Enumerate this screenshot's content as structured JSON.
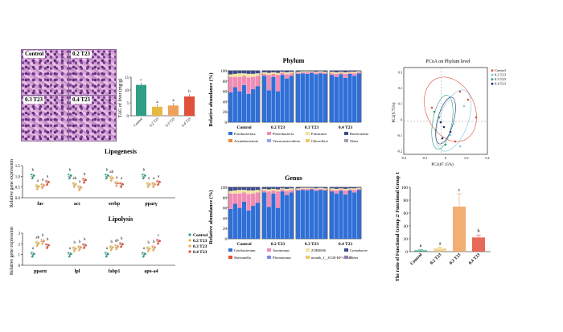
{
  "histology": {
    "labels": [
      "Control",
      "0.2 T23",
      "0.3 T23",
      "0.4 T23"
    ]
  },
  "colors": {
    "control": "#2e9e84",
    "t02": "#e6b845",
    "t03": "#f0a15a",
    "t04": "#e0503a"
  },
  "chart_data": [
    {
      "id": "tag",
      "type": "bar",
      "ylabel": "TAG of liver (mg/g)",
      "categories": [
        "Control",
        "0.2 T23",
        "0.3 T23",
        "0.4 T23"
      ],
      "values": [
        12,
        3.5,
        4,
        7.5
      ],
      "ylim": [
        0,
        15
      ],
      "yticks": [
        "0",
        "5",
        "10",
        "15"
      ],
      "letters": [
        "c",
        "a",
        "a",
        "b"
      ]
    },
    {
      "id": "lipogenesis",
      "type": "scatter",
      "title": "Lipogenesis",
      "ylabel": "Relative gene expression",
      "genes": [
        "fas",
        "acc",
        "srebp",
        "pparγ"
      ],
      "groups": [
        "Control",
        "0.2 T23",
        "0.3 T23",
        "0.4 T23"
      ],
      "means": [
        [
          1.0,
          0.5,
          0.55,
          0.7
        ],
        [
          1.0,
          0.6,
          0.45,
          0.8
        ],
        [
          1.0,
          0.9,
          0.65,
          0.6
        ],
        [
          1.0,
          0.6,
          0.6,
          0.7
        ]
      ],
      "letters": [
        [
          "b",
          "a",
          "a",
          "a"
        ],
        [
          "b",
          "ab",
          "a",
          "b"
        ],
        [
          "b",
          "ab",
          "a",
          "a"
        ],
        [
          "b",
          "a",
          "a",
          "a"
        ]
      ],
      "ylim": [
        0,
        1.5
      ],
      "yticks": [
        "0.0",
        "0.5",
        "1.0",
        "1.5"
      ]
    },
    {
      "id": "lipolysis",
      "type": "scatter",
      "title": "Lipolysis",
      "ylabel": "Relative gene expression",
      "genes": [
        "pparα",
        "lpl",
        "fabp1",
        "apo-a4"
      ],
      "groups": [
        "Control",
        "0.2 T23",
        "0.3 T23",
        "0.4 T23"
      ],
      "means": [
        [
          1.0,
          2.0,
          2.2,
          1.8
        ],
        [
          1.0,
          1.5,
          1.6,
          1.8
        ],
        [
          1.0,
          1.6,
          1.7,
          1.9
        ],
        [
          1.0,
          1.5,
          1.6,
          2.2
        ]
      ],
      "letters": [
        [
          "a",
          "ab",
          "b",
          "b"
        ],
        [
          "a",
          "b",
          "b",
          "b"
        ],
        [
          "a",
          "b",
          "ab",
          "b"
        ],
        [
          "a",
          "b",
          "b",
          "c"
        ]
      ],
      "ylim": [
        0,
        3
      ],
      "yticks": [
        "0",
        "1",
        "2",
        "3"
      ],
      "legend": [
        "Control",
        "0.2 T23",
        "0.3 T23",
        "0.4 T23"
      ]
    },
    {
      "id": "phylum",
      "type": "bar",
      "title": "Phylum",
      "ylabel": "Relative abundance (%)",
      "groups": [
        "Control",
        "0.2 T23",
        "0.3 T23",
        "0.4 T23"
      ],
      "yticks": [
        "0",
        "20",
        "40",
        "60",
        "80",
        "100"
      ],
      "legend": [
        "Fusobacteriota",
        "Proteobacteria",
        "Firmicutes",
        "Bacteroidota",
        "Actinobacteriota",
        "Verrucomicrobiota",
        "Chloroflexi",
        "Other"
      ],
      "legend_colors": [
        "#2f6fd6",
        "#f28cb4",
        "#f4e3a0",
        "#3a4a8a",
        "#e88a3c",
        "#8fa8e8",
        "#f2c66a",
        "#9aa4b2"
      ]
    },
    {
      "id": "genus",
      "type": "bar",
      "title": "Genus",
      "ylabel": "Relative abundance (%)",
      "groups": [
        "Control",
        "0.2 T23",
        "0.3 T23",
        "0.4 T23"
      ],
      "yticks": [
        "0",
        "20",
        "40",
        "60",
        "80",
        "100"
      ],
      "legend": [
        "Cetobacterium",
        "Aeromonas",
        "ZOR0006",
        "Crenobacter",
        "Shewanella",
        "Plesiomonas",
        "norank_f__JG30-KF-CM45",
        "Other"
      ],
      "legend_colors": [
        "#2f6fd6",
        "#f28cb4",
        "#f4e3a0",
        "#3a4a8a",
        "#e0503a",
        "#7a8ee8",
        "#f2c66a",
        "#9a7ab2"
      ]
    },
    {
      "id": "pcoa",
      "type": "scatter",
      "title": "PCoA on Phylum level",
      "xlabel": "PC1(87.15%)",
      "ylabel": "PC2(9.75%)",
      "xticks": [
        "-0.4",
        "-0.2",
        "0",
        "0.2",
        "0.4"
      ],
      "yticks": [
        "0.3",
        "0.2",
        "0.1",
        "0",
        "-0.1",
        "-0.2"
      ],
      "legend": [
        "Control",
        "0.2 T23",
        "0.3 T23",
        "0.4 T23"
      ],
      "legend_colors": [
        "#e0503a",
        "#7ec8e3",
        "#2e9e84",
        "#1e2b6b"
      ]
    },
    {
      "id": "ratio",
      "type": "bar",
      "ylabel": "The ratio of Functional Group 2/ Functional Group 1",
      "categories": [
        "Control",
        "0.2 T23",
        "0.3 T23",
        "0.4 T23"
      ],
      "values": [
        2,
        5,
        70,
        22
      ],
      "ylim": [
        0,
        100
      ],
      "yticks": [
        "0",
        "20",
        "40",
        "60",
        "80",
        "100"
      ],
      "letters": [
        "a",
        "a",
        "c",
        "b"
      ]
    }
  ]
}
